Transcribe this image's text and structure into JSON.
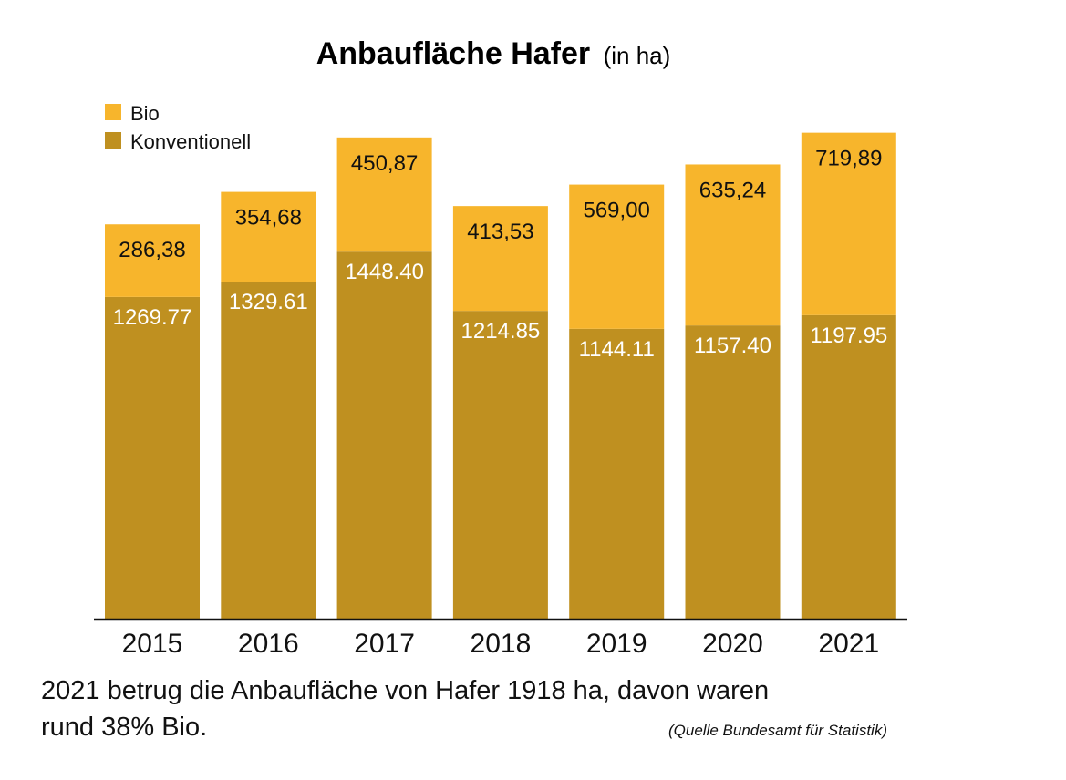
{
  "chart_data": {
    "type": "bar",
    "stacked": true,
    "title": "Anbaufläche Hafer",
    "title_unit": "(in ha)",
    "xlabel": "",
    "ylabel": "",
    "categories": [
      "2015",
      "2016",
      "2017",
      "2018",
      "2019",
      "2020",
      "2021"
    ],
    "series": [
      {
        "name": "Konventionell",
        "color": "#bf9020",
        "values": [
          1269.77,
          1329.61,
          1448.4,
          1214.85,
          1144.11,
          1157.4,
          1197.95
        ],
        "labels": [
          "1269.77",
          "1329.61",
          "1448.40",
          "1214.85",
          "1144.11",
          "1157.40",
          "1197.95"
        ]
      },
      {
        "name": "Bio",
        "color": "#f7b52c",
        "values": [
          286.38,
          354.68,
          450.87,
          413.53,
          569.0,
          635.24,
          719.89
        ],
        "labels": [
          "286,38",
          "354,68",
          "450,87",
          "413,53",
          "569,00",
          "635,24",
          "719,89"
        ]
      }
    ],
    "legend": {
      "placement": "top-left",
      "entries": [
        {
          "label": "Bio",
          "color": "#f7b52c"
        },
        {
          "label": "Konventionell",
          "color": "#bf9020"
        }
      ]
    },
    "ylim": [
      0,
      1920
    ],
    "grid": false,
    "y_axis_visible": false
  },
  "caption": {
    "line1": "2021 betrug die Anbaufläche von Hafer 1918 ha, davon waren",
    "line2": "rund 38% Bio.",
    "source": "(Quelle Bundesamt für Statistik)"
  }
}
